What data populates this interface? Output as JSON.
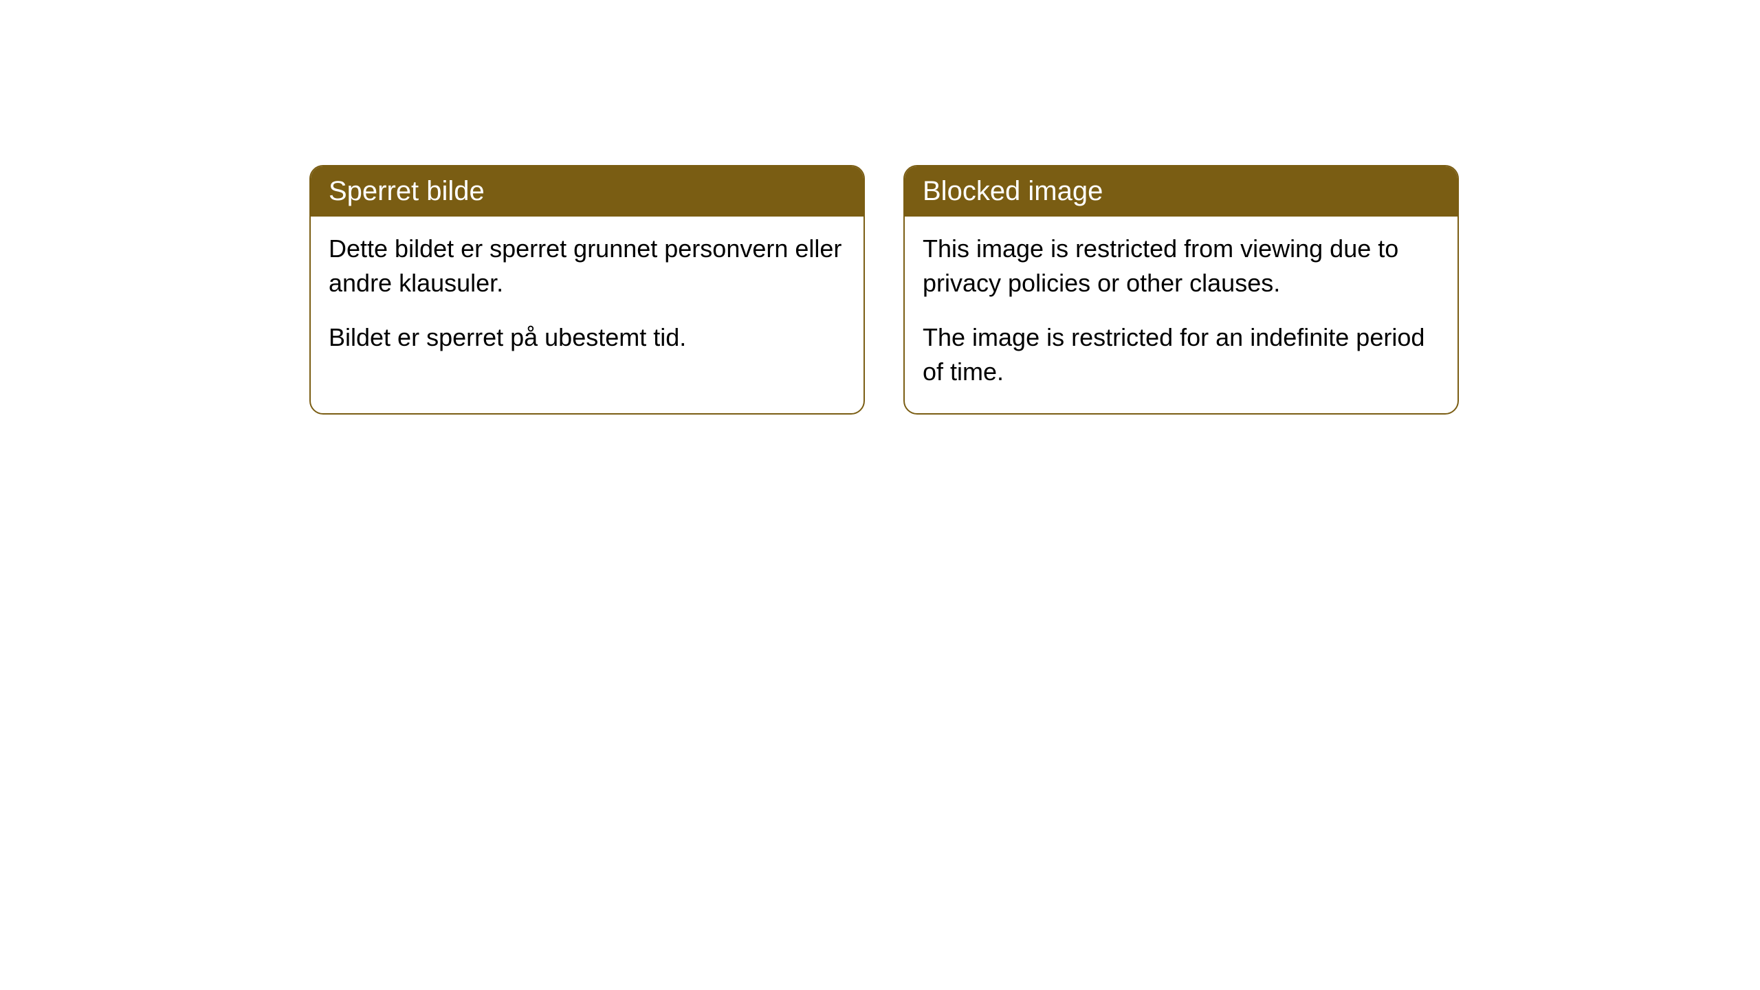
{
  "cards": [
    {
      "title": "Sperret bilde",
      "paragraph1": "Dette bildet er sperret grunnet personvern eller andre klausuler.",
      "paragraph2": "Bildet er sperret på ubestemt tid."
    },
    {
      "title": "Blocked image",
      "paragraph1": "This image is restricted from viewing due to privacy policies or other clauses.",
      "paragraph2": "The image is restricted for an indefinite period of time."
    }
  ],
  "styling": {
    "header_background_color": "#7a5d13",
    "header_text_color": "#ffffff",
    "border_color": "#7a5d13",
    "body_background_color": "#ffffff",
    "body_text_color": "#000000",
    "border_radius": 20,
    "header_fontsize": 40,
    "body_fontsize": 36
  }
}
